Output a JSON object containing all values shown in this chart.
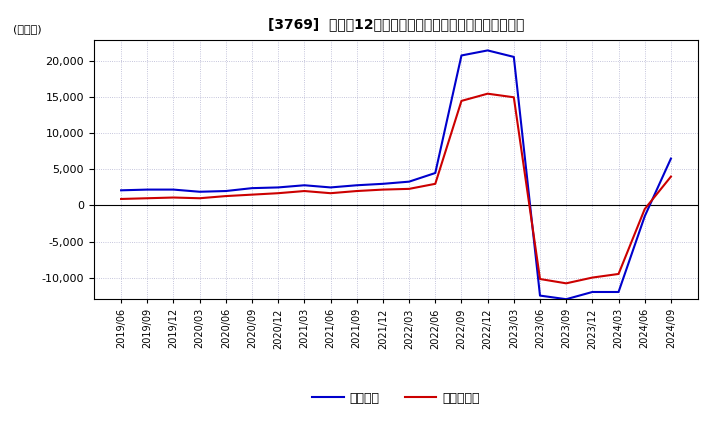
{
  "title": "[3769]  利益の12か月移動合計の対前年同期増減額の推移",
  "ylabel": "(百万円)",
  "ylim": [
    -13000,
    23000
  ],
  "yticks": [
    -10000,
    -5000,
    0,
    5000,
    10000,
    15000,
    20000
  ],
  "legend_labels": [
    "経常利益",
    "当期純利益"
  ],
  "line_colors": [
    "#0000cc",
    "#cc0000"
  ],
  "dates": [
    "2019/06",
    "2019/09",
    "2019/12",
    "2020/03",
    "2020/06",
    "2020/09",
    "2020/12",
    "2021/03",
    "2021/06",
    "2021/09",
    "2021/12",
    "2022/03",
    "2022/06",
    "2022/09",
    "2022/12",
    "2023/03",
    "2023/06",
    "2023/09",
    "2023/12",
    "2024/03",
    "2024/06",
    "2024/09"
  ],
  "operating_profit": [
    2100,
    2200,
    2200,
    1900,
    2000,
    2400,
    2500,
    2800,
    2500,
    2800,
    3000,
    3300,
    4500,
    20800,
    21500,
    20600,
    -12500,
    -13000,
    -12000,
    -12000,
    -1500,
    6500
  ],
  "net_profit": [
    900,
    1000,
    1100,
    1000,
    1300,
    1500,
    1700,
    2000,
    1700,
    2000,
    2200,
    2300,
    3000,
    14500,
    15500,
    15000,
    -10200,
    -10800,
    -10000,
    -9500,
    -500,
    4000
  ]
}
